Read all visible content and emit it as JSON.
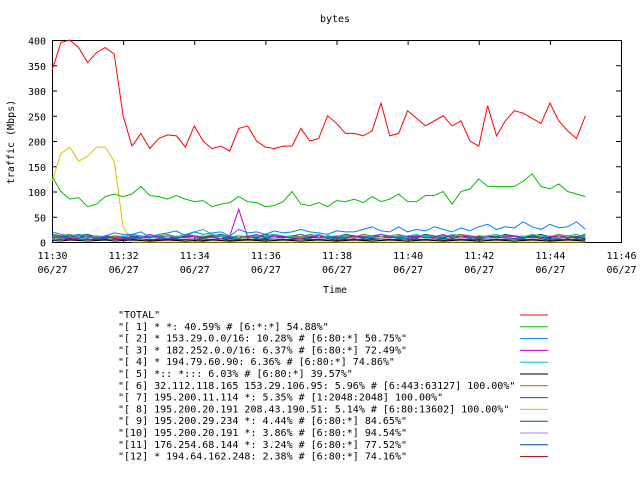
{
  "chart_data": {
    "type": "line",
    "title": "bytes",
    "xlabel": "Time",
    "ylabel": "traffic (Mbps)",
    "ylim": [
      0,
      400
    ],
    "xlim": [
      "11:30",
      "11:46"
    ],
    "y_ticks": [
      0,
      50,
      100,
      150,
      200,
      250,
      300,
      350,
      400
    ],
    "x_ticks": [
      {
        "time": "11:30",
        "date": "06/27"
      },
      {
        "time": "11:32",
        "date": "06/27"
      },
      {
        "time": "11:34",
        "date": "06/27"
      },
      {
        "time": "11:36",
        "date": "06/27"
      },
      {
        "time": "11:38",
        "date": "06/27"
      },
      {
        "time": "11:40",
        "date": "06/27"
      },
      {
        "time": "11:42",
        "date": "06/27"
      },
      {
        "time": "11:44",
        "date": "06/27"
      },
      {
        "time": "11:46",
        "date": "06/27"
      }
    ],
    "x_minutes": [
      0,
      0.25,
      0.5,
      0.75,
      1,
      1.25,
      1.5,
      1.75,
      2,
      2.25,
      2.5,
      2.75,
      3,
      3.25,
      3.5,
      3.75,
      4,
      4.25,
      4.5,
      4.75,
      5,
      5.25,
      5.5,
      5.75,
      6,
      6.25,
      6.5,
      6.75,
      7,
      7.25,
      7.5,
      7.75,
      8,
      8.25,
      8.5,
      8.75,
      9,
      9.25,
      9.5,
      9.75,
      10,
      10.25,
      10.5,
      10.75,
      11,
      11.25,
      11.5,
      11.75,
      12,
      12.25,
      12.5,
      12.75,
      13,
      13.25,
      13.5,
      13.75,
      14,
      14.25,
      14.5,
      14.75,
      15
    ],
    "grid": false,
    "legend_position": "bottom",
    "series": [
      {
        "name": "\"TOTAL\"",
        "color": "#ff0000",
        "values": [
          340,
          395,
          400,
          385,
          355,
          375,
          385,
          372,
          250,
          190,
          215,
          185,
          205,
          212,
          210,
          188,
          230,
          200,
          185,
          190,
          180,
          225,
          230,
          200,
          188,
          185,
          190,
          190,
          225,
          200,
          205,
          250,
          235,
          215,
          215,
          210,
          220,
          275,
          210,
          215,
          260,
          245,
          230,
          240,
          250,
          230,
          240,
          200,
          190,
          270,
          210,
          240,
          260,
          255,
          245,
          235,
          275,
          240,
          220,
          205,
          250
        ]
      },
      {
        "name": "\"[ 1] * *: 40.59% # [6:*:*] 54.88%\"",
        "color": "#00c000",
        "values": [
          130,
          100,
          85,
          88,
          70,
          75,
          90,
          95,
          90,
          95,
          110,
          92,
          90,
          85,
          92,
          85,
          80,
          82,
          70,
          75,
          78,
          90,
          80,
          78,
          70,
          72,
          80,
          100,
          75,
          72,
          78,
          70,
          82,
          80,
          85,
          78,
          90,
          80,
          85,
          95,
          80,
          80,
          92,
          92,
          100,
          75,
          100,
          105,
          125,
          110,
          110,
          110,
          110,
          120,
          135,
          110,
          105,
          115,
          100,
          95,
          90
        ]
      },
      {
        "name": "\"[ 2] * 153.29.0.0/16: 10.28% # [6:80:*] 50.75%\"",
        "color": "#0080ff",
        "values": [
          20,
          15,
          12,
          15,
          10,
          8,
          12,
          18,
          15,
          15,
          20,
          10,
          15,
          18,
          22,
          12,
          20,
          15,
          18,
          20,
          12,
          25,
          18,
          20,
          15,
          22,
          18,
          20,
          25,
          20,
          18,
          15,
          22,
          20,
          20,
          25,
          30,
          22,
          20,
          30,
          20,
          25,
          22,
          30,
          25,
          20,
          28,
          22,
          30,
          35,
          25,
          30,
          28,
          40,
          30,
          25,
          35,
          28,
          30,
          40,
          25
        ]
      },
      {
        "name": "\"[ 3] * 182.252.0.0/16: 6.37% # [6:80:*] 72.49%\"",
        "color": "#c000c0",
        "values": [
          8,
          10,
          6,
          8,
          12,
          5,
          10,
          8,
          6,
          10,
          8,
          15,
          10,
          6,
          8,
          10,
          12,
          8,
          10,
          6,
          12,
          65,
          10,
          15,
          8,
          12,
          10,
          8,
          6,
          10,
          12,
          8,
          10,
          8,
          12,
          10,
          8,
          15,
          10,
          8,
          10,
          12,
          8,
          10,
          15,
          8,
          10,
          12,
          8,
          10,
          8,
          10,
          12,
          8,
          10,
          8,
          10,
          12,
          8,
          10,
          8
        ]
      },
      {
        "name": "\"[ 4] * 194.79.60.90: 6.36% # [6:80:*] 74.86%\"",
        "color": "#00c0c0",
        "values": [
          5,
          8,
          10,
          6,
          8,
          12,
          10,
          8,
          10,
          15,
          12,
          10,
          8,
          12,
          10,
          15,
          20,
          25,
          15,
          10,
          12,
          8,
          10,
          12,
          10,
          15,
          12,
          10,
          8,
          12,
          15,
          10,
          12,
          10,
          8,
          12,
          10,
          15,
          12,
          10,
          12,
          15,
          10,
          12,
          10,
          15,
          12,
          10,
          8,
          12,
          15,
          10,
          12,
          10,
          15,
          12,
          10,
          8,
          12,
          15,
          10
        ]
      },
      {
        "name": "\"[ 5] *:: *::: 6.03% # [6:80:*] 39.57%\"",
        "color": "#000000",
        "values": [
          3,
          2,
          4,
          3,
          2,
          3,
          4,
          2,
          3,
          4,
          3,
          2,
          3,
          4,
          3,
          2,
          3,
          2,
          4,
          3,
          2,
          3,
          4,
          3,
          2,
          3,
          4,
          3,
          2,
          3,
          4,
          3,
          2,
          3,
          4,
          3,
          2,
          3,
          4,
          3,
          2,
          3,
          4,
          3,
          2,
          3,
          4,
          3,
          2,
          3,
          4,
          3,
          2,
          3,
          4,
          3,
          2,
          3,
          4,
          3,
          2
        ]
      },
      {
        "name": "\"[ 6] 32.112.118.165 153.29.106.95: 5.96% # [6:443:63127] 100.00%\"",
        "color": "#808000",
        "values": [
          10,
          12,
          15,
          8,
          12,
          10,
          8,
          12,
          10,
          15,
          12,
          10,
          12,
          15,
          10,
          8,
          12,
          10,
          15,
          12,
          10,
          12,
          8,
          10,
          12,
          15,
          10,
          12,
          10,
          15,
          12,
          10,
          8,
          12,
          10,
          15,
          12,
          10,
          12,
          15,
          10,
          12,
          10,
          8,
          12,
          10,
          15,
          12,
          10,
          12,
          15,
          10,
          12,
          10,
          8,
          12,
          10,
          15,
          12,
          10,
          12
        ]
      },
      {
        "name": "\"[ 7] 195.200.11.114 *: 5.35% # [1:2048:2048] 100.00%\"",
        "color": "#0060a0",
        "values": [
          6,
          5,
          7,
          6,
          5,
          6,
          7,
          5,
          6,
          7,
          6,
          5,
          6,
          7,
          6,
          5,
          6,
          7,
          5,
          6,
          7,
          6,
          5,
          6,
          7,
          6,
          5,
          6,
          7,
          6,
          5,
          6,
          7,
          6,
          5,
          6,
          7,
          6,
          5,
          6,
          7,
          6,
          5,
          6,
          7,
          6,
          5,
          6,
          7,
          6,
          5,
          6,
          7,
          6,
          5,
          6,
          7,
          6,
          5,
          6,
          7
        ]
      },
      {
        "name": "\"[ 8] 195.200.20.191 208.43.190.51: 5.14% # [6:80:13602] 100.00%\"",
        "color": "#e0c000",
        "values": [
          120,
          175,
          188,
          160,
          170,
          188,
          188,
          160,
          30,
          0,
          0,
          0,
          0,
          0,
          0,
          0,
          0,
          0,
          0,
          0,
          0,
          0,
          0,
          0,
          0,
          0,
          0,
          0,
          0,
          0,
          0,
          0,
          0,
          0,
          0,
          0,
          0,
          0,
          0,
          0,
          0,
          0,
          0,
          0,
          0,
          0,
          0,
          0,
          0,
          0,
          0,
          0,
          0,
          0,
          0,
          0,
          0,
          0,
          0,
          0,
          0
        ]
      },
      {
        "name": "\"[ 9] 195.200.29.234 *: 4.44% # [6:80:*] 84.65%\"",
        "color": "#006040",
        "values": [
          15,
          12,
          10,
          12,
          15,
          10,
          8,
          12,
          10,
          15,
          12,
          10,
          8,
          12,
          10,
          15,
          12,
          10,
          12,
          15,
          10,
          8,
          12,
          10,
          15,
          12,
          10,
          12,
          15,
          10,
          8,
          12,
          10,
          15,
          12,
          10,
          12,
          15,
          10,
          8,
          12,
          10,
          15,
          12,
          10,
          12,
          15,
          10,
          8,
          12,
          10,
          15,
          12,
          10,
          12,
          15,
          10,
          8,
          12,
          10,
          15
        ]
      },
      {
        "name": "\"[10] 195.200.20.191 *: 3.86% # [6:80:*] 94.54%\"",
        "color": "#a080ff",
        "values": [
          8,
          10,
          12,
          8,
          10,
          12,
          8,
          10,
          12,
          8,
          10,
          12,
          8,
          10,
          12,
          8,
          10,
          12,
          8,
          10,
          12,
          8,
          10,
          12,
          8,
          10,
          12,
          8,
          10,
          12,
          8,
          10,
          12,
          8,
          10,
          12,
          8,
          10,
          12,
          8,
          10,
          12,
          8,
          10,
          12,
          8,
          10,
          12,
          8,
          10,
          12,
          8,
          10,
          12,
          8,
          10,
          12,
          8,
          10,
          12,
          8
        ]
      },
      {
        "name": "\"[11] 176.254.68.144 *: 3.24% # [6:80:*] 77.52%\"",
        "color": "#0040c0",
        "values": [
          12,
          10,
          8,
          12,
          10,
          8,
          12,
          10,
          8,
          12,
          10,
          8,
          12,
          10,
          8,
          12,
          10,
          8,
          12,
          10,
          8,
          12,
          10,
          8,
          12,
          10,
          8,
          12,
          10,
          8,
          12,
          10,
          8,
          12,
          10,
          8,
          12,
          10,
          8,
          12,
          10,
          8,
          12,
          10,
          8,
          12,
          10,
          8,
          12,
          10,
          8,
          12,
          10,
          8,
          12,
          10,
          8,
          12,
          10,
          8,
          12
        ]
      },
      {
        "name": "\"[12] * 194.64.162.248: 2.38% # [6:80:*] 74.16%\"",
        "color": "#a00000",
        "values": [
          5,
          6,
          4,
          5,
          6,
          4,
          5,
          6,
          4,
          5,
          6,
          4,
          5,
          6,
          4,
          5,
          6,
          4,
          5,
          6,
          4,
          5,
          6,
          4,
          5,
          6,
          4,
          5,
          6,
          4,
          5,
          6,
          4,
          5,
          6,
          4,
          5,
          6,
          4,
          5,
          6,
          4,
          5,
          6,
          4,
          5,
          6,
          4,
          5,
          6,
          4,
          5,
          6,
          4,
          5,
          6,
          4,
          5,
          6,
          4,
          5
        ]
      }
    ]
  }
}
